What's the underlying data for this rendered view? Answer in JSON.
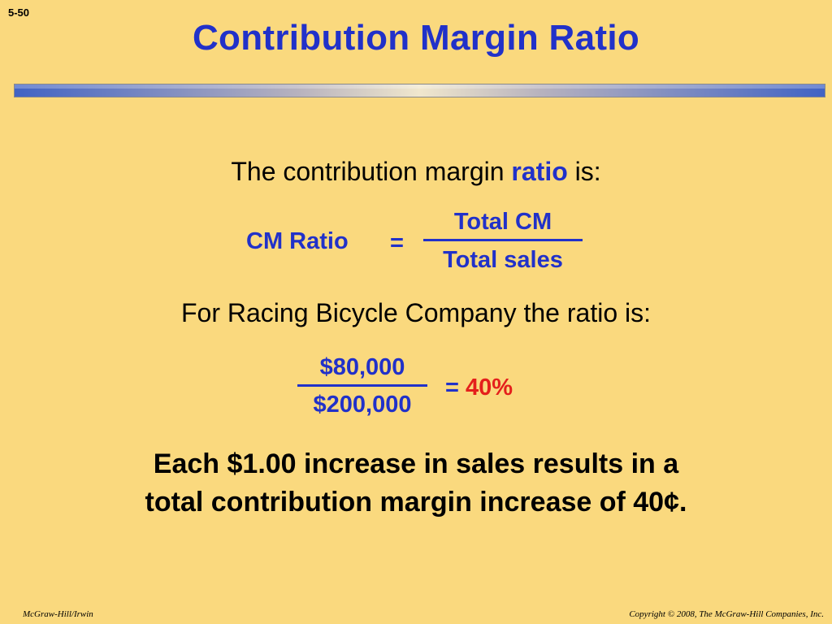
{
  "slide": {
    "number": "5-50",
    "title": "Contribution Margin Ratio"
  },
  "intro": {
    "before": "The contribution margin ",
    "emphasis": "ratio",
    "after": " is:"
  },
  "formula": {
    "label": "CM Ratio",
    "equals": "=",
    "numerator": "Total CM",
    "denominator": "Total sales"
  },
  "example": {
    "intro": "For Racing Bicycle Company the ratio is:",
    "numerator": "$80,000",
    "denominator": "$200,000",
    "equals": "=",
    "result": "40%"
  },
  "takeaway": {
    "line1": "Each $1.00 increase in sales results in a",
    "line2": "total contribution margin increase of 40¢."
  },
  "footer": {
    "publisher": "McGraw-Hill/Irwin",
    "copyright": "Copyright © 2008, The McGraw-Hill Companies, Inc."
  },
  "colors": {
    "background": "#fad97e",
    "accent_blue": "#2131c9",
    "result_red": "#e4201c"
  }
}
